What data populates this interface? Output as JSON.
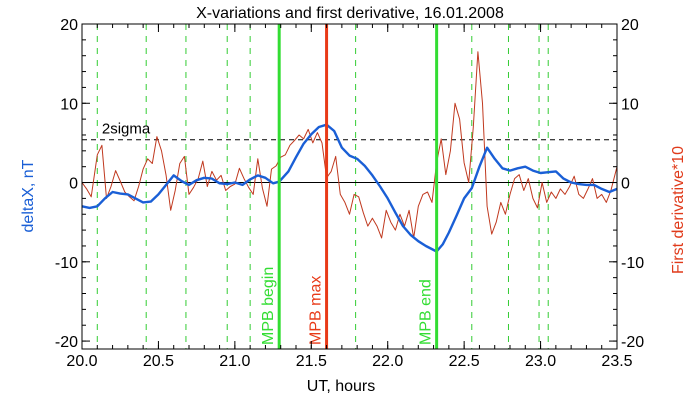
{
  "chart_data": {
    "type": "line",
    "title": "X-variations and first derivative, 16.01.2008",
    "xlabel": "UT, hours",
    "ylabel_left": "deltaX, nT",
    "ylabel_right": "First derivative*10",
    "xlim": [
      20.0,
      23.5
    ],
    "ylim": [
      -21,
      20
    ],
    "x_ticks": [
      {
        "value": 20.0,
        "label": "20.0"
      },
      {
        "value": 20.5,
        "label": "20.5"
      },
      {
        "value": 21.0,
        "label": "21.0"
      },
      {
        "value": 21.5,
        "label": "21.5"
      },
      {
        "value": 22.0,
        "label": "22.0"
      },
      {
        "value": 22.5,
        "label": "22.5"
      },
      {
        "value": 23.0,
        "label": "23.0"
      },
      {
        "value": 23.5,
        "label": "23.5"
      }
    ],
    "y_ticks": [
      {
        "value": 20,
        "label": "20"
      },
      {
        "value": 10,
        "label": "10"
      },
      {
        "value": 0,
        "label": "0"
      },
      {
        "value": -10,
        "label": "-10"
      },
      {
        "value": -20,
        "label": "-20"
      }
    ],
    "grid": false,
    "colors": {
      "deltaX": "#1a5fd6",
      "derivative": "#c0391f",
      "mpb_begin_end": "#33dd33",
      "mpb_max": "#e83a18",
      "dashed_green": "#33cc33",
      "right_label": "#e03a1a",
      "left_label": "#1a5fd6"
    },
    "sigma_level": {
      "value": 5.4,
      "label": "2sigma"
    },
    "dashed_vlines": [
      20.1,
      20.42,
      20.68,
      20.95,
      21.1,
      21.79,
      22.55,
      22.79,
      22.99,
      23.05
    ],
    "markers": [
      {
        "x": 21.29,
        "label": "MPB begin",
        "color": "#33dd33"
      },
      {
        "x": 21.6,
        "label": "MPB max",
        "color": "#e83a18"
      },
      {
        "x": 22.32,
        "label": "MPB end",
        "color": "#33dd33"
      }
    ],
    "series": [
      {
        "name": "deltaX",
        "x": [
          20.0,
          20.05,
          20.1,
          20.15,
          20.2,
          20.25,
          20.3,
          20.35,
          20.4,
          20.45,
          20.5,
          20.55,
          20.6,
          20.65,
          20.7,
          20.75,
          20.8,
          20.85,
          20.9,
          20.95,
          21.0,
          21.05,
          21.1,
          21.15,
          21.2,
          21.25,
          21.29,
          21.35,
          21.4,
          21.45,
          21.5,
          21.55,
          21.6,
          21.65,
          21.7,
          21.75,
          21.8,
          21.85,
          21.9,
          21.95,
          22.0,
          22.05,
          22.1,
          22.15,
          22.2,
          22.25,
          22.32,
          22.36,
          22.4,
          22.45,
          22.5,
          22.55,
          22.6,
          22.65,
          22.7,
          22.75,
          22.8,
          22.85,
          22.9,
          22.95,
          23.0,
          23.05,
          23.1,
          23.15,
          23.2,
          23.25,
          23.3,
          23.35,
          23.4,
          23.45,
          23.5
        ],
        "y": [
          -3.0,
          -3.2,
          -3.0,
          -2.0,
          -1.2,
          -1.4,
          -1.5,
          -2.0,
          -2.5,
          -2.4,
          -1.5,
          -0.3,
          0.9,
          0.2,
          -0.3,
          0.3,
          0.6,
          0.5,
          -0.1,
          -0.2,
          0.0,
          -0.3,
          0.4,
          0.9,
          0.6,
          -0.1,
          0.1,
          1.4,
          3.2,
          4.9,
          6.1,
          7.0,
          7.3,
          6.5,
          4.4,
          3.4,
          3.0,
          2.1,
          0.9,
          -0.5,
          -2.0,
          -3.8,
          -5.5,
          -6.6,
          -7.4,
          -8.0,
          -8.7,
          -7.8,
          -6.3,
          -4.2,
          -2.0,
          -0.7,
          2.0,
          4.4,
          3.0,
          1.8,
          1.5,
          1.8,
          2.0,
          1.5,
          1.2,
          1.3,
          1.4,
          0.5,
          0.0,
          -0.2,
          -0.3,
          -0.3,
          -0.8,
          -1.2,
          -0.8
        ]
      },
      {
        "name": "First derivative*10",
        "x": [
          20.0,
          20.03,
          20.06,
          20.1,
          20.13,
          20.16,
          20.19,
          20.22,
          20.25,
          20.28,
          20.31,
          20.34,
          20.37,
          20.4,
          20.43,
          20.46,
          20.49,
          20.52,
          20.55,
          20.58,
          20.61,
          20.64,
          20.67,
          20.7,
          20.73,
          20.76,
          20.79,
          20.82,
          20.85,
          20.88,
          20.91,
          20.94,
          20.97,
          21.0,
          21.03,
          21.06,
          21.09,
          21.12,
          21.15,
          21.18,
          21.21,
          21.24,
          21.27,
          21.3,
          21.33,
          21.36,
          21.39,
          21.42,
          21.45,
          21.48,
          21.51,
          21.54,
          21.57,
          21.6,
          21.63,
          21.66,
          21.69,
          21.72,
          21.75,
          21.78,
          21.81,
          21.84,
          21.87,
          21.9,
          21.93,
          21.96,
          21.99,
          22.02,
          22.05,
          22.08,
          22.11,
          22.14,
          22.17,
          22.2,
          22.23,
          22.26,
          22.29,
          22.32,
          22.35,
          22.38,
          22.41,
          22.44,
          22.47,
          22.5,
          22.53,
          22.56,
          22.59,
          22.62,
          22.65,
          22.68,
          22.71,
          22.74,
          22.77,
          22.8,
          22.83,
          22.86,
          22.89,
          22.92,
          22.95,
          22.98,
          23.01,
          23.04,
          23.07,
          23.1,
          23.13,
          23.16,
          23.19,
          23.22,
          23.25,
          23.28,
          23.31,
          23.34,
          23.37,
          23.4,
          23.43,
          23.46,
          23.5
        ],
        "y": [
          0.0,
          -0.8,
          -1.8,
          3.5,
          4.7,
          -2.0,
          -0.5,
          1.5,
          0.2,
          -1.2,
          -1.8,
          -2.3,
          -0.5,
          1.7,
          3.0,
          2.4,
          5.8,
          4.0,
          0.9,
          -3.5,
          -1.0,
          2.4,
          3.3,
          -1.5,
          -0.6,
          0.5,
          2.7,
          -0.5,
          1.4,
          0.3,
          0.9,
          -1.0,
          -0.5,
          -0.2,
          1.8,
          0.5,
          -0.6,
          -1.5,
          3.0,
          -0.7,
          -3.0,
          1.7,
          2.1,
          3.2,
          3.5,
          4.7,
          5.3,
          6.0,
          5.5,
          6.7,
          5.0,
          6.3,
          5.0,
          0.6,
          1.4,
          3.3,
          -1.5,
          -2.5,
          -4.0,
          -1.5,
          -1.8,
          -3.8,
          -5.5,
          -4.5,
          -5.5,
          -7.0,
          -3.5,
          -5.0,
          -6.0,
          -4.0,
          -5.5,
          -3.5,
          -7.0,
          -3.0,
          -1.5,
          -1.2,
          -2.5,
          2.5,
          5.5,
          1.0,
          4.0,
          10.0,
          8.0,
          2.5,
          0.0,
          7.0,
          16.5,
          10.0,
          -3.0,
          -6.5,
          -5.0,
          -2.5,
          -4.0,
          -1.5,
          0.5,
          1.0,
          -1.0,
          0.5,
          -2.0,
          -3.2,
          0.0,
          -2.5,
          -1.2,
          -2.0,
          -0.8,
          -1.5,
          -0.5,
          0.8,
          -1.5,
          -2.0,
          -0.8,
          0.5,
          -2.0,
          -1.5,
          -2.5,
          -1.0,
          2.0
        ]
      }
    ]
  }
}
